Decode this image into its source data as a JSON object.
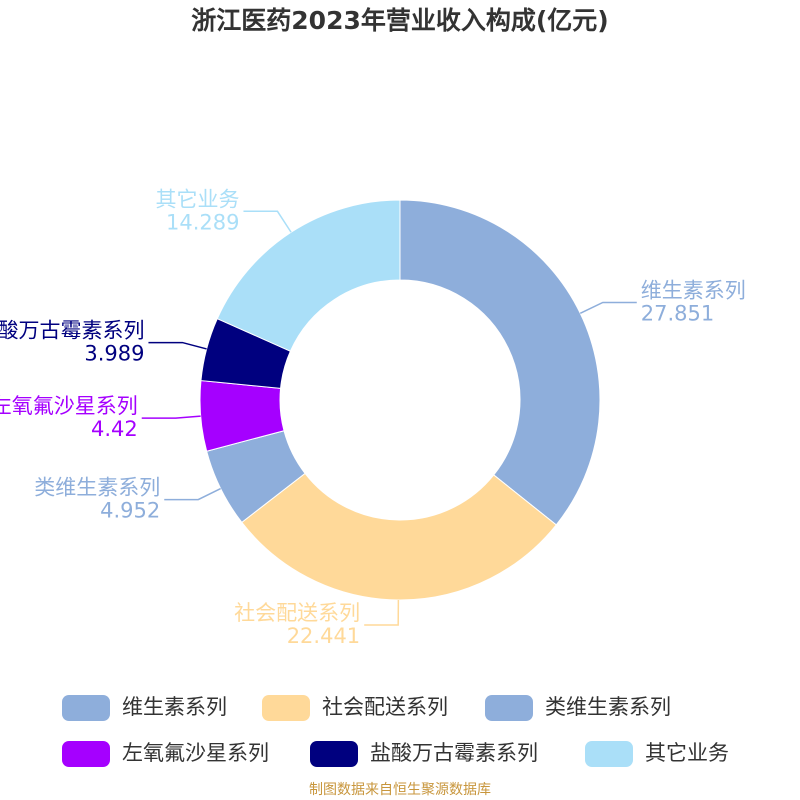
{
  "chart_data": {
    "type": "pie",
    "title": "浙江医药2023年营业收入构成(亿元)",
    "categories": [
      "维生素系列",
      "社会配送系列",
      "类维生素系列",
      "左氧氟沙星系列",
      "盐酸万古霉素系列",
      "其它业务"
    ],
    "values": [
      27.851,
      22.441,
      4.952,
      4.42,
      3.989,
      14.289
    ],
    "colors": [
      "#8eaedb",
      "#ffd999",
      "#8eaedb",
      "#a500ff",
      "#00007f",
      "#aadff8"
    ],
    "donut": true,
    "legend": "bottom",
    "source": "制图数据来自恒生聚源数据库"
  }
}
